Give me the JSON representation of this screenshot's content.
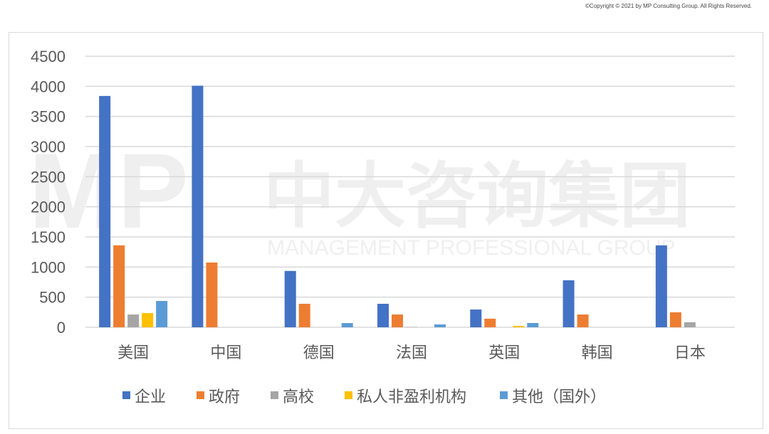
{
  "copyright": "©Copyright © 2021 by MP Consulting Group. All Rights Reserved.",
  "watermark": {
    "cn": "中大咨询集团",
    "en": "MANAGEMENT PROFESSIONAL GROUP",
    "logo": "MP"
  },
  "chart_data": {
    "type": "bar",
    "title": "",
    "xlabel": "",
    "ylabel": "",
    "ylim": [
      0,
      4500
    ],
    "yticks": [
      0,
      500,
      1000,
      1500,
      2000,
      2500,
      3000,
      3500,
      4000,
      4500
    ],
    "grid": true,
    "legend_position": "bottom",
    "categories": [
      "美国",
      "中国",
      "德国",
      "法国",
      "英国",
      "韩国",
      "日本"
    ],
    "series": [
      {
        "name": "企业",
        "color": "#4472C4",
        "values": [
          3840,
          4010,
          935,
          390,
          295,
          780,
          1360
        ]
      },
      {
        "name": "政府",
        "color": "#ED7D31",
        "values": [
          1360,
          1075,
          390,
          212,
          142,
          212,
          248
        ]
      },
      {
        "name": "高校",
        "color": "#A5A5A5",
        "values": [
          212,
          0,
          0,
          5,
          0,
          0,
          83
        ]
      },
      {
        "name": "私人非盈利机构",
        "color": "#FFC000",
        "values": [
          236,
          0,
          0,
          0,
          24,
          0,
          0
        ]
      },
      {
        "name": "其他（国外）",
        "color": "#5B9BD5",
        "values": [
          437,
          0,
          70,
          47,
          71,
          0,
          0
        ]
      }
    ]
  }
}
